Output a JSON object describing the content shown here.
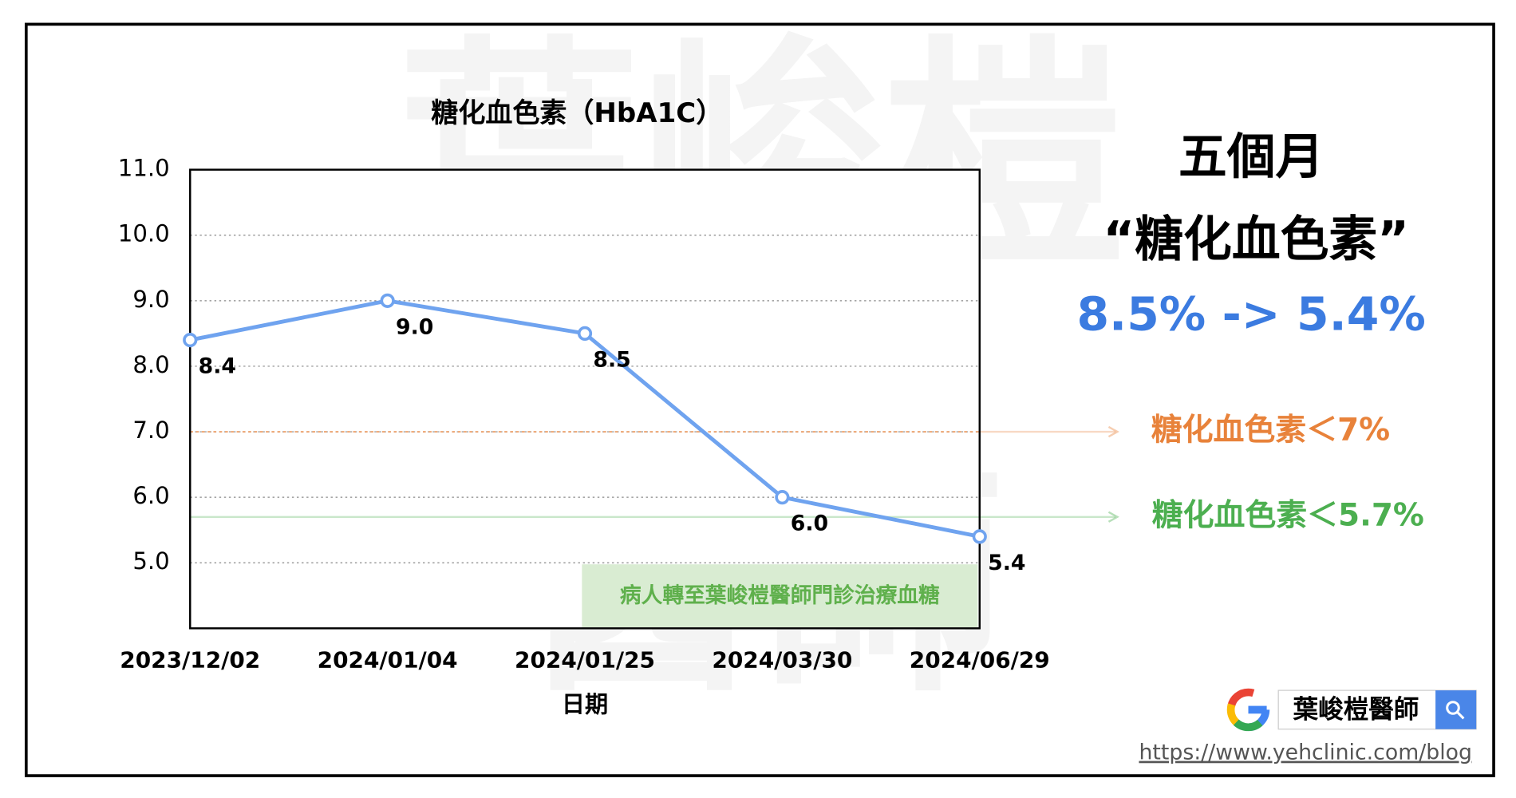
{
  "chart_data": {
    "type": "line",
    "title": "糖化血色素（HbA1C）",
    "x_label": "日期",
    "categories": [
      "2023/12/02",
      "2024/01/04",
      "2024/01/25",
      "2024/03/30",
      "2024/06/29"
    ],
    "values": [
      8.4,
      9.0,
      8.5,
      6.0,
      5.4
    ],
    "value_labels": [
      "8.4",
      "9.0",
      "8.5",
      "6.0",
      "5.4"
    ],
    "color": "#6fa3ef",
    "ylim": [
      4.0,
      11.0
    ],
    "yticks": [
      {
        "value": 5,
        "label": "5.0"
      },
      {
        "value": 6,
        "label": "6.0"
      },
      {
        "value": 7,
        "label": "7.0"
      },
      {
        "value": 8,
        "label": "8.0"
      },
      {
        "value": 9,
        "label": "9.0"
      },
      {
        "value": 10,
        "label": "10.0"
      },
      {
        "value": 11,
        "label": "11.0"
      }
    ],
    "grid": true,
    "reference_lines": [
      {
        "value": 7,
        "label": "糖化血色素＜7%",
        "color": "#e8823a"
      },
      {
        "value": 5.7,
        "label": "糖化血色素＜5.7%",
        "color": "#4caf50"
      }
    ],
    "annotation": "病人轉至葉峻榿醫師門診治療血糖",
    "side_text": [
      "五個月",
      "“糖化血色素”",
      "8.5% -> 5.4%"
    ],
    "watermark": [
      "葉峻榿",
      "醫師"
    ],
    "search_text": "葉峻榿醫師",
    "url": "https://www.yehclinic.com/blog"
  }
}
